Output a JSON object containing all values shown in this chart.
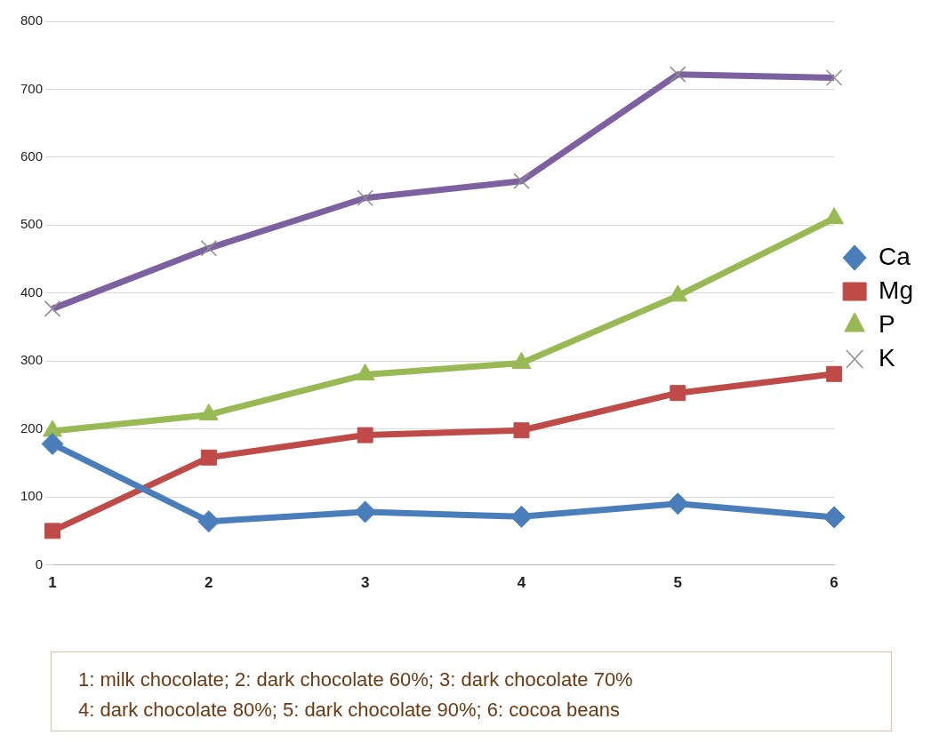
{
  "chart_data": {
    "type": "line",
    "categories": [
      "1",
      "2",
      "3",
      "4",
      "5",
      "6"
    ],
    "series": [
      {
        "name": "Ca",
        "color": "#4a7ebb",
        "marker": "diamond",
        "values": [
          178,
          64,
          78,
          71,
          90,
          70
        ]
      },
      {
        "name": "Mg",
        "color": "#be4b48",
        "marker": "square",
        "values": [
          50,
          158,
          191,
          198,
          253,
          281
        ]
      },
      {
        "name": "P",
        "color": "#98b954",
        "marker": "triangle",
        "values": [
          197,
          221,
          280,
          297,
          396,
          510
        ]
      },
      {
        "name": "K",
        "color": "#7d60a0",
        "marker": "cross",
        "values": [
          377,
          466,
          540,
          565,
          722,
          717
        ]
      }
    ],
    "ylim": [
      0,
      800
    ],
    "yticks": [
      0,
      100,
      200,
      300,
      400,
      500,
      600,
      700,
      800
    ],
    "grid": "y",
    "legend": "right",
    "annotations": [
      "1: milk chocolate;  2: dark chocolate 60%; 3: dark chocolate 70%",
      "4: dark chocolate 80%; 5: dark chocolate 90%; 6: cocoa beans"
    ]
  }
}
